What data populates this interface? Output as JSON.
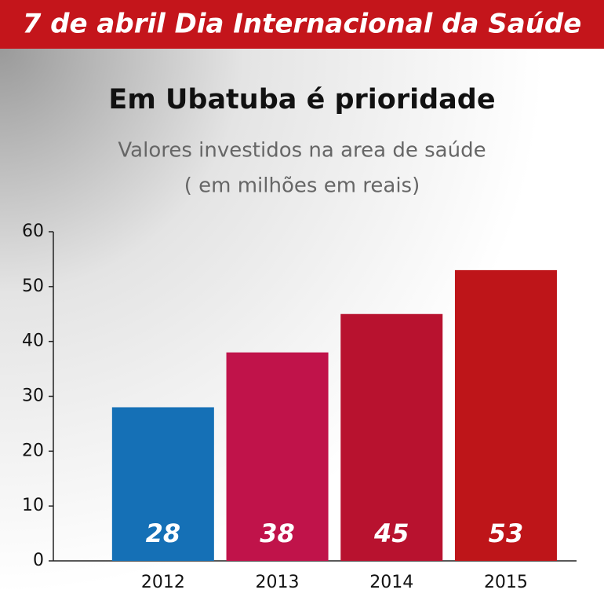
{
  "chart_data": {
    "type": "bar",
    "header": "7 de abril Dia Internacional da Saúde",
    "title": "Em Ubatuba é prioridade",
    "subtitle": [
      "Valores investidos na area de saúde",
      "( em milhões em reais)"
    ],
    "categories": [
      "2012",
      "2013",
      "2014",
      "2015"
    ],
    "values": [
      28,
      38,
      45,
      53
    ],
    "colors": [
      "#1570b6",
      "#c0134a",
      "#b8122f",
      "#be1519"
    ],
    "ylim": [
      0,
      60
    ],
    "yticks": [
      0,
      10,
      20,
      30,
      40,
      50,
      60
    ]
  }
}
